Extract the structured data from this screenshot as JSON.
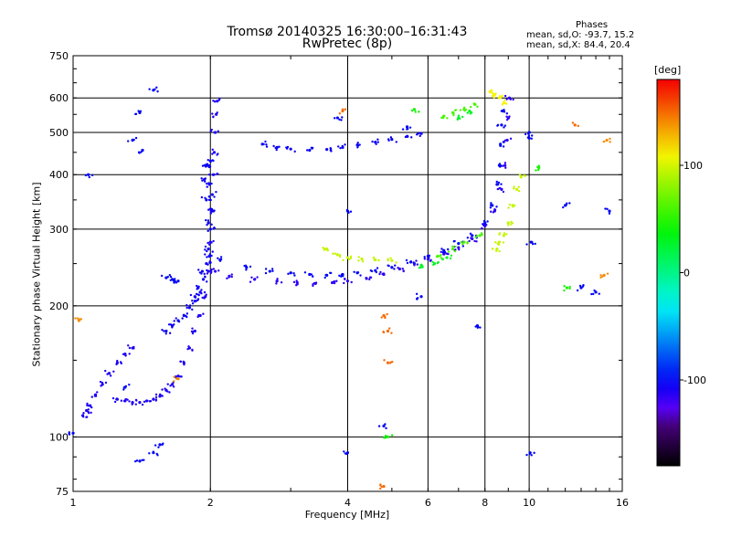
{
  "title": {
    "line1": "Tromsø 20140325 16:30:00–16:31:43",
    "line2": "RwPretec (8p)"
  },
  "phase_box": {
    "heading": "Phases",
    "line_o": "mean, sd,O: -93.7, 15.2",
    "line_x": "mean, sd,X:  84.4, 20.4"
  },
  "colorbar": {
    "unit": "[deg]",
    "range": [
      -180,
      180
    ],
    "ticks": [
      {
        "label": "100",
        "value": 100
      },
      {
        "label": "0",
        "value": 0
      },
      {
        "label": "-100",
        "value": -100
      }
    ]
  },
  "chart_data": {
    "type": "scatter",
    "xlabel": "Frequency [MHz]",
    "ylabel": "Stationary phase Virtual Height [km]",
    "xscale": "log",
    "yscale": "log",
    "xlim": [
      1,
      16
    ],
    "ylim": [
      75,
      750
    ],
    "x_ticks": [
      1,
      2,
      4,
      6,
      8,
      10,
      16
    ],
    "y_ticks": [
      75,
      100,
      200,
      300,
      400,
      500,
      600,
      750
    ],
    "x_grid": [
      2,
      4,
      6,
      8,
      10
    ],
    "y_grid": [
      100,
      200,
      300,
      400,
      500,
      600
    ],
    "grid": true,
    "series": [
      {
        "phase": -110,
        "points": [
          [
            1.05,
            112
          ],
          [
            1.07,
            115
          ],
          [
            1.09,
            118
          ],
          [
            1.12,
            125
          ],
          [
            1.16,
            132
          ],
          [
            1.2,
            140
          ],
          [
            1.25,
            148
          ],
          [
            1.3,
            155
          ],
          [
            1.35,
            160
          ],
          [
            1.25,
            122
          ],
          [
            1.3,
            121
          ],
          [
            1.35,
            120
          ],
          [
            1.4,
            120
          ],
          [
            1.45,
            121
          ],
          [
            1.5,
            122
          ],
          [
            1.55,
            124
          ],
          [
            1.6,
            128
          ],
          [
            1.65,
            132
          ],
          [
            1.7,
            138
          ],
          [
            1.75,
            148
          ],
          [
            1.8,
            160
          ],
          [
            1.85,
            175
          ],
          [
            1.9,
            190
          ],
          [
            1.95,
            210
          ],
          [
            1.98,
            240
          ],
          [
            2.0,
            280
          ],
          [
            2.02,
            330
          ],
          [
            2.03,
            400
          ],
          [
            2.04,
            450
          ],
          [
            2.05,
            500
          ],
          [
            2.06,
            550
          ],
          [
            2.07,
            590
          ]
        ]
      },
      {
        "phase": -105,
        "points": [
          [
            1.6,
            175
          ],
          [
            1.65,
            180
          ],
          [
            1.7,
            185
          ],
          [
            1.75,
            190
          ],
          [
            1.8,
            198
          ],
          [
            1.85,
            205
          ],
          [
            1.9,
            215
          ],
          [
            1.93,
            230
          ],
          [
            1.96,
            250
          ],
          [
            1.98,
            270
          ],
          [
            2.0,
            300
          ],
          [
            2.01,
            330
          ],
          [
            2.02,
            360
          ],
          [
            1.99,
            380
          ],
          [
            1.97,
            420
          ],
          [
            2.0,
            430
          ],
          [
            1.95,
            420
          ],
          [
            1.94,
            390
          ],
          [
            1.96,
            350
          ],
          [
            1.98,
            310
          ],
          [
            1.99,
            260
          ],
          [
            1.92,
            240
          ],
          [
            1.88,
            220
          ],
          [
            1.85,
            210
          ]
        ]
      },
      {
        "phase": -115,
        "points": [
          [
            2.05,
            240
          ],
          [
            2.2,
            234
          ],
          [
            2.5,
            230
          ],
          [
            2.8,
            228
          ],
          [
            3.1,
            226
          ],
          [
            3.4,
            225
          ],
          [
            3.7,
            226
          ],
          [
            4.0,
            228
          ],
          [
            4.4,
            231
          ],
          [
            4.8,
            236
          ],
          [
            5.2,
            243
          ],
          [
            5.6,
            250
          ],
          [
            6.0,
            256
          ],
          [
            6.5,
            263
          ],
          [
            7.0,
            272
          ],
          [
            7.5,
            285
          ],
          [
            8.0,
            305
          ],
          [
            8.4,
            330
          ],
          [
            8.7,
            370
          ],
          [
            8.85,
            420
          ],
          [
            8.95,
            480
          ],
          [
            9.0,
            540
          ],
          [
            9.05,
            600
          ]
        ]
      },
      {
        "phase": -100,
        "points": [
          [
            2.1,
            255
          ],
          [
            2.4,
            245
          ],
          [
            2.7,
            240
          ],
          [
            3.0,
            238
          ],
          [
            3.3,
            236
          ],
          [
            3.6,
            235
          ],
          [
            3.9,
            236
          ],
          [
            4.2,
            238
          ],
          [
            4.6,
            241
          ],
          [
            5.0,
            245
          ],
          [
            5.5,
            252
          ],
          [
            6.0,
            260
          ],
          [
            6.5,
            268
          ],
          [
            7.0,
            278
          ],
          [
            7.5,
            290
          ],
          [
            8.0,
            310
          ],
          [
            8.3,
            340
          ],
          [
            8.5,
            380
          ],
          [
            8.6,
            420
          ],
          [
            8.65,
            470
          ],
          [
            8.7,
            520
          ],
          [
            8.75,
            560
          ]
        ]
      },
      {
        "phase": -105,
        "points": [
          [
            2.6,
            470
          ],
          [
            2.8,
            462
          ],
          [
            3.0,
            458
          ],
          [
            3.3,
            455
          ],
          [
            3.6,
            457
          ],
          [
            3.9,
            462
          ],
          [
            4.2,
            468
          ],
          [
            4.6,
            475
          ],
          [
            5.0,
            482
          ],
          [
            5.4,
            490
          ],
          [
            5.8,
            497
          ]
        ]
      },
      {
        "phase": 95,
        "points": [
          [
            3.6,
            270
          ],
          [
            3.8,
            262
          ],
          [
            4.0,
            258
          ],
          [
            4.3,
            256
          ],
          [
            4.6,
            255
          ],
          [
            5.0,
            254
          ],
          [
            8.8,
            290
          ],
          [
            9.0,
            310
          ],
          [
            9.2,
            340
          ],
          [
            9.4,
            370
          ],
          [
            9.6,
            395
          ],
          [
            8.5,
            270
          ],
          [
            8.6,
            280
          ]
        ]
      },
      {
        "phase": 110,
        "points": [
          [
            8.2,
            620
          ],
          [
            8.4,
            610
          ],
          [
            8.6,
            600
          ],
          [
            8.8,
            585
          ]
        ]
      },
      {
        "phase": 60,
        "points": [
          [
            6.3,
            260
          ],
          [
            6.8,
            270
          ],
          [
            7.2,
            280
          ],
          [
            7.8,
            290
          ],
          [
            6.5,
            545
          ],
          [
            6.8,
            555
          ],
          [
            7.2,
            565
          ],
          [
            7.6,
            580
          ]
        ]
      },
      {
        "phase": 30,
        "points": [
          [
            6.2,
            250
          ],
          [
            5.8,
            248
          ],
          [
            6.6,
            258
          ],
          [
            7.0,
            540
          ],
          [
            7.4,
            560
          ]
        ]
      },
      {
        "phase": -100,
        "points": [
          [
            1.0,
            102
          ],
          [
            1.08,
            400
          ],
          [
            1.4,
            555
          ],
          [
            1.5,
            625
          ],
          [
            1.35,
            480
          ],
          [
            1.42,
            455
          ],
          [
            1.6,
            232
          ],
          [
            1.65,
            230
          ],
          [
            1.7,
            228
          ],
          [
            1.3,
            130
          ],
          [
            1.5,
            92
          ],
          [
            1.55,
            96
          ],
          [
            1.4,
            88
          ],
          [
            4.0,
            330
          ],
          [
            4.0,
            92
          ],
          [
            4.8,
            106
          ],
          [
            5.4,
            515
          ],
          [
            10.0,
            500
          ],
          [
            10.0,
            485
          ],
          [
            10.05,
            92
          ],
          [
            12.0,
            340
          ],
          [
            13.0,
            220
          ],
          [
            14.0,
            215
          ],
          [
            15.0,
            330
          ],
          [
            3.8,
            540
          ],
          [
            5.8,
            210
          ],
          [
            7.7,
            180
          ],
          [
            10.1,
            280
          ]
        ]
      },
      {
        "phase": 150,
        "points": [
          [
            4.9,
            175
          ],
          [
            4.9,
            148
          ],
          [
            4.8,
            77
          ],
          [
            12.6,
            520
          ],
          [
            3.9,
            560
          ],
          [
            4.8,
            190
          ]
        ]
      },
      {
        "phase": 140,
        "points": [
          [
            14.8,
            480
          ],
          [
            14.6,
            235
          ],
          [
            1.03,
            185
          ],
          [
            1.7,
            136
          ]
        ]
      },
      {
        "phase": 45,
        "points": [
          [
            4.9,
            100
          ],
          [
            12.1,
            220
          ],
          [
            10.5,
            415
          ],
          [
            5.6,
            565
          ]
        ]
      }
    ]
  }
}
